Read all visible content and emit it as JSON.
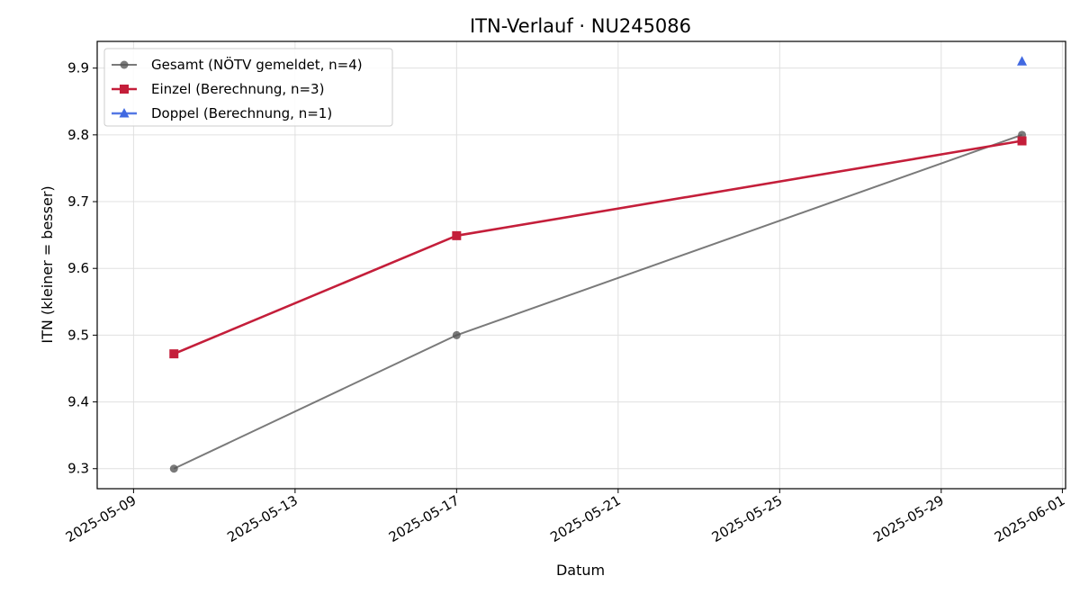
{
  "chart_data": {
    "type": "line",
    "title": "ITN-Verlauf · NU245086",
    "xlabel": "Datum",
    "ylabel": "ITN  (kleiner = besser)",
    "xlim": [
      "2025-05-08",
      "2025-06-01"
    ],
    "ylim": [
      9.27,
      9.94
    ],
    "xticks": [
      "2025-05-09",
      "2025-05-13",
      "2025-05-17",
      "2025-05-21",
      "2025-05-25",
      "2025-05-29",
      "2025-06-01"
    ],
    "yticks": [
      9.3,
      9.4,
      9.5,
      9.6,
      9.7,
      9.8,
      9.9
    ],
    "grid": true,
    "legend_position": "top-left",
    "series": [
      {
        "name": "Gesamt (NÖTV gemeldet, n=4)",
        "color": "#555555",
        "marker": "circle",
        "points": [
          {
            "x": "2025-05-10",
            "y": 9.3
          },
          {
            "x": "2025-05-17",
            "y": 9.5
          },
          {
            "x": "2025-05-31",
            "y": 9.8
          }
        ]
      },
      {
        "name": "Einzel (Berechnung, n=3)",
        "color": "#c41e3a",
        "marker": "square",
        "points": [
          {
            "x": "2025-05-10",
            "y": 9.472
          },
          {
            "x": "2025-05-17",
            "y": 9.649
          },
          {
            "x": "2025-05-31",
            "y": 9.791
          }
        ]
      },
      {
        "name": "Doppel (Berechnung, n=1)",
        "color": "#4169e1",
        "marker": "triangle",
        "points": [
          {
            "x": "2025-05-31",
            "y": 9.91
          }
        ]
      }
    ]
  }
}
